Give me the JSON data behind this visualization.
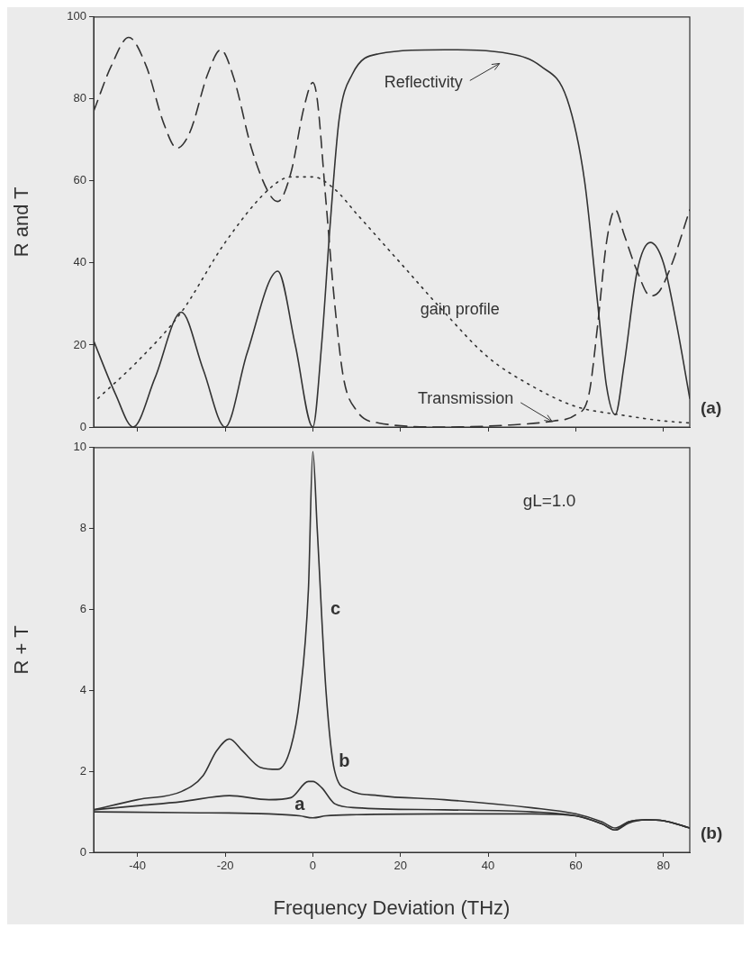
{
  "chart_data": [
    {
      "type": "line",
      "ylabel": "R and T",
      "xlim": [
        -50,
        86
      ],
      "xticks": [
        -40,
        -20,
        0,
        20,
        40,
        60,
        80
      ],
      "ylim": [
        0,
        100
      ],
      "yticks": [
        0,
        20,
        40,
        60,
        80,
        100
      ],
      "tick_labels": "y",
      "grid": false,
      "legend": false,
      "marker": "none",
      "series": [
        {
          "color": "#333333",
          "line_style": "solid",
          "x": [
            -50,
            -45,
            -41,
            -36,
            -30,
            -25,
            -20,
            -15,
            -8,
            -4,
            0,
            2,
            4,
            6,
            9,
            15,
            30,
            45,
            52,
            58,
            62,
            65,
            67,
            69,
            71,
            74,
            77,
            80,
            83,
            86
          ],
          "values": [
            21,
            8,
            0,
            12,
            28,
            14,
            0,
            18,
            38,
            20,
            0,
            20,
            50,
            75,
            86,
            91,
            92,
            91,
            88,
            80,
            60,
            30,
            10,
            3,
            15,
            38,
            45,
            40,
            25,
            7
          ]
        },
        {
          "color": "#333333",
          "line_style": "dashed",
          "x": [
            -50,
            -46,
            -42,
            -38,
            -34,
            -31,
            -28,
            -24,
            -21,
            -18,
            -14,
            -10,
            -8,
            -5,
            -2,
            0,
            1,
            3,
            5,
            7,
            10,
            15,
            30,
            45,
            55,
            60,
            63,
            65,
            67,
            69,
            71,
            74,
            77,
            79,
            82,
            86
          ],
          "values": [
            77,
            88,
            95,
            88,
            74,
            68,
            72,
            86,
            92,
            85,
            68,
            57,
            55,
            62,
            78,
            84,
            80,
            55,
            30,
            12,
            4,
            1,
            0,
            0.5,
            1.5,
            3,
            8,
            25,
            45,
            53,
            47,
            38,
            32,
            33,
            40,
            53
          ]
        },
        {
          "color": "#333333",
          "line_style": "dotted",
          "x": [
            -49,
            -40,
            -30,
            -20,
            -10,
            -5,
            0,
            5,
            10,
            20,
            30,
            40,
            50,
            60,
            70,
            80,
            86
          ],
          "values": [
            7,
            16,
            28,
            45,
            58,
            61,
            61,
            58,
            52,
            40,
            28,
            17,
            10,
            5,
            3,
            1.5,
            1
          ]
        }
      ],
      "annotations": [
        {
          "text": "Reflectivity",
          "x": 42,
          "y": 88
        },
        {
          "text": "Transmission",
          "x": 54,
          "y": 2
        },
        {
          "text": "gain profile",
          "x": 20,
          "y": 40
        },
        "(a)"
      ]
    },
    {
      "type": "line",
      "xlabel": "Frequency Deviation (THz)",
      "ylabel": "R + T",
      "xlim": [
        -50,
        86
      ],
      "xticks": [
        -40,
        -20,
        0,
        20,
        40,
        60,
        80
      ],
      "ylim": [
        0,
        10
      ],
      "yticks": [
        0,
        2,
        4,
        6,
        8,
        10
      ],
      "grid": false,
      "legend": false,
      "marker": "none",
      "series": [
        {
          "color": "#333333",
          "line_style": "solid",
          "x": [
            -50,
            -30,
            -10,
            -3,
            0,
            3,
            10,
            30,
            50,
            60,
            66,
            69,
            72,
            76,
            80,
            86
          ],
          "values": [
            1.0,
            0.98,
            0.95,
            0.9,
            0.85,
            0.9,
            0.93,
            0.95,
            0.95,
            0.9,
            0.7,
            0.55,
            0.72,
            0.8,
            0.78,
            0.6
          ]
        },
        {
          "color": "#333333",
          "line_style": "solid",
          "x": [
            -50,
            -40,
            -30,
            -19,
            -10,
            -5,
            -1,
            0,
            2,
            5,
            10,
            30,
            50,
            60,
            66,
            69,
            72,
            76,
            80,
            86
          ],
          "values": [
            1.05,
            1.15,
            1.25,
            1.4,
            1.3,
            1.35,
            1.75,
            1.75,
            1.6,
            1.2,
            1.1,
            1.05,
            1.0,
            0.9,
            0.7,
            0.55,
            0.75,
            0.8,
            0.78,
            0.6
          ]
        },
        {
          "color": "#333333",
          "line_style": "solid",
          "x": [
            -50,
            -40,
            -30,
            -25,
            -22,
            -19,
            -16,
            -12,
            -8,
            -5,
            -3,
            -1,
            0,
            1,
            3,
            5,
            8,
            15,
            30,
            50,
            60,
            66,
            69,
            72,
            76,
            80,
            86
          ],
          "values": [
            1.05,
            1.3,
            1.5,
            1.9,
            2.5,
            2.8,
            2.5,
            2.1,
            2.05,
            2.6,
            3.8,
            6.5,
            9.9,
            8,
            4,
            2,
            1.55,
            1.4,
            1.3,
            1.1,
            0.95,
            0.75,
            0.6,
            0.75,
            0.8,
            0.78,
            0.6
          ]
        }
      ],
      "annotations": [
        {
          "text": "a",
          "x": -3,
          "y": 0.9
        },
        {
          "text": "b",
          "x": 1,
          "y": 1.75
        },
        {
          "text": "c",
          "x": 2,
          "y": 6
        },
        "gL=1.0",
        "(b)"
      ]
    }
  ]
}
